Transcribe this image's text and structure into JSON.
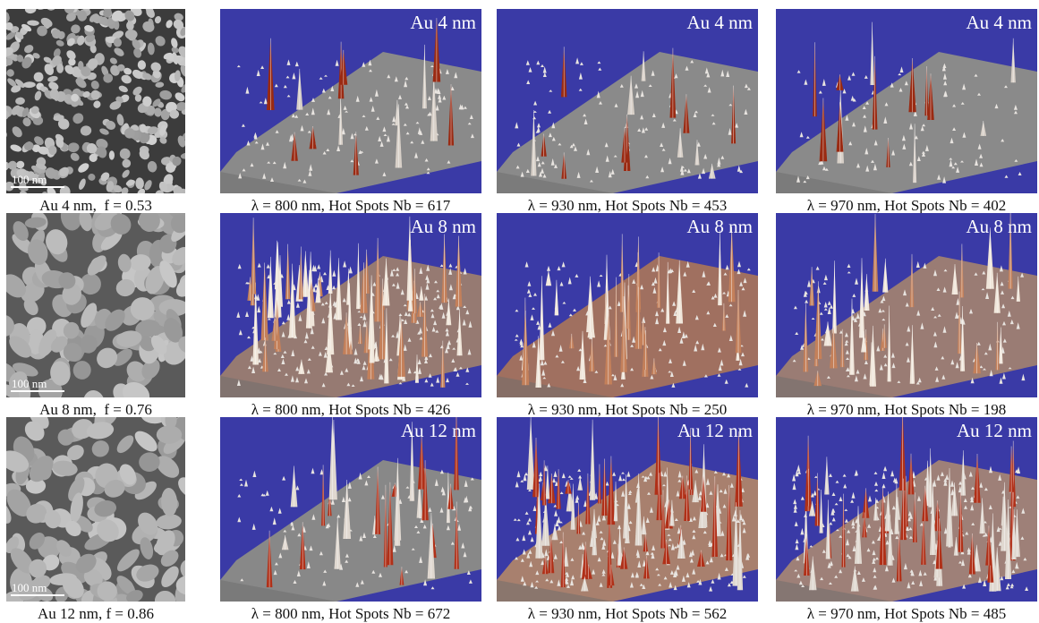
{
  "rows": [
    {
      "sem_scale": "100 nm",
      "sem_caption": "Au 4 nm,  f = 0.53",
      "map_label": "Au 4 nm",
      "maps": [
        {
          "caption": "λ = 800 nm, Hot Spots Nb = 617"
        },
        {
          "caption": "λ = 930 nm, Hot Spots Nb = 453"
        },
        {
          "caption": "λ = 970 nm, Hot Spots Nb = 402"
        }
      ]
    },
    {
      "sem_scale": "100 nm",
      "sem_caption": "Au 8 nm,  f = 0.76",
      "map_label": "Au 8 nm",
      "maps": [
        {
          "caption": "λ = 800 nm, Hot Spots Nb = 426"
        },
        {
          "caption": "λ = 930 nm, Hot Spots Nb = 250"
        },
        {
          "caption": "λ = 970 nm, Hot Spots Nb = 198"
        }
      ]
    },
    {
      "sem_scale": "100 nm",
      "sem_caption": "Au 12 nm, f = 0.86",
      "map_label": "Au 12 nm",
      "maps": [
        {
          "caption": "λ = 800 nm, Hot Spots Nb = 672"
        },
        {
          "caption": "λ = 930 nm, Hot Spots Nb = 562"
        },
        {
          "caption": "λ = 970 nm, Hot Spots Nb = 485"
        }
      ]
    }
  ],
  "colors": {
    "map_background": "#3a3aa6",
    "surface_grey": "#8a8a8a",
    "surface_copper": "#b07a66",
    "hotspot_red": "#a02a10",
    "hotspot_orange": "#e09040"
  }
}
